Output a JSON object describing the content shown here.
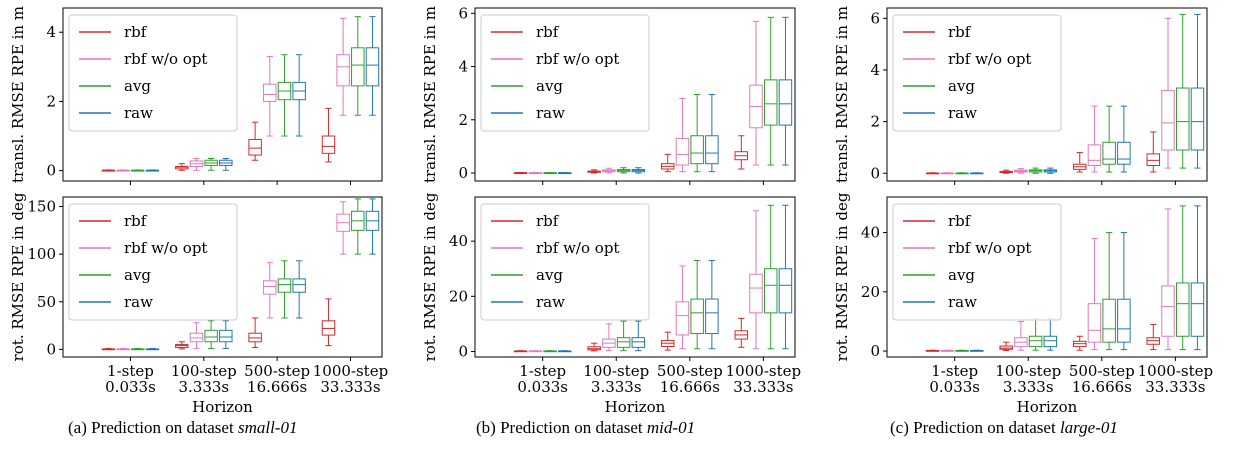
{
  "figure": {
    "xlabel": "Horizon",
    "categories": [
      "1-step\n0.033s",
      "100-step\n3.333s",
      "500-step\n16.666s",
      "1000-step\n33.333s"
    ],
    "legend": [
      {
        "name": "rbf",
        "color": "#d62728"
      },
      {
        "name": "rbf w/o opt",
        "color": "#e377c2"
      },
      {
        "name": "avg",
        "color": "#2ca02c"
      },
      {
        "name": "raw",
        "color": "#1f77b4"
      }
    ],
    "captions": [
      {
        "prefix": "(a) Prediction on dataset ",
        "dataset": "small-01"
      },
      {
        "prefix": "(b) Prediction on dataset ",
        "dataset": "mid-01"
      },
      {
        "prefix": "(c) Prediction on dataset ",
        "dataset": "large-01"
      }
    ]
  },
  "chart_data": [
    {
      "type": "box",
      "panel": "small-01 / translation",
      "ylabel": "transl. RMSE RPE in m",
      "ylim": [
        -0.3,
        4.7
      ],
      "yticks": [
        0,
        2,
        4
      ],
      "categories": [
        "1-step\n0.033s",
        "100-step\n3.333s",
        "500-step\n16.666s",
        "1000-step\n33.333s"
      ],
      "legend_position": "top-left",
      "grid": false,
      "series": [
        {
          "name": "rbf",
          "color": "#d62728",
          "boxes": [
            [
              0.0,
              0.0,
              0.01,
              0.01,
              0.02
            ],
            [
              0.01,
              0.05,
              0.1,
              0.12,
              0.2
            ],
            [
              0.3,
              0.45,
              0.65,
              0.9,
              1.4
            ],
            [
              0.25,
              0.5,
              0.7,
              1.0,
              1.8
            ]
          ]
        },
        {
          "name": "rbf w/o opt",
          "color": "#e377c2",
          "boxes": [
            [
              0.0,
              0.0,
              0.01,
              0.01,
              0.02
            ],
            [
              0.01,
              0.12,
              0.2,
              0.28,
              0.35
            ],
            [
              1.0,
              2.0,
              2.2,
              2.5,
              3.3
            ],
            [
              1.6,
              2.45,
              3.0,
              3.35,
              4.4
            ]
          ]
        },
        {
          "name": "avg",
          "color": "#2ca02c",
          "boxes": [
            [
              0.0,
              0.0,
              0.01,
              0.01,
              0.02
            ],
            [
              0.01,
              0.15,
              0.22,
              0.3,
              0.35
            ],
            [
              1.0,
              2.05,
              2.3,
              2.55,
              3.35
            ],
            [
              1.6,
              2.45,
              3.05,
              3.55,
              4.45
            ]
          ]
        },
        {
          "name": "raw",
          "color": "#1f77b4",
          "boxes": [
            [
              0.0,
              0.0,
              0.01,
              0.01,
              0.02
            ],
            [
              0.01,
              0.15,
              0.22,
              0.3,
              0.35
            ],
            [
              1.0,
              2.05,
              2.3,
              2.55,
              3.35
            ],
            [
              1.6,
              2.45,
              3.05,
              3.55,
              4.45
            ]
          ]
        }
      ]
    },
    {
      "type": "box",
      "panel": "small-01 / rotation",
      "ylabel": "rot. RMSE RPE in deg",
      "ylim": [
        -8,
        160
      ],
      "yticks": [
        0,
        50,
        100,
        150
      ],
      "categories": [
        "1-step\n0.033s",
        "100-step\n3.333s",
        "500-step\n16.666s",
        "1000-step\n33.333s"
      ],
      "legend_position": "top-left",
      "grid": false,
      "series": [
        {
          "name": "rbf",
          "color": "#d62728",
          "boxes": [
            [
              0,
              0,
              0.3,
              0.5,
              1
            ],
            [
              0.5,
              2,
              4,
              5,
              8
            ],
            [
              2,
              8,
              12,
              17,
              33
            ],
            [
              4,
              15,
              22,
              30,
              53
            ]
          ]
        },
        {
          "name": "rbf w/o opt",
          "color": "#e377c2",
          "boxes": [
            [
              0,
              0,
              0.3,
              0.5,
              1
            ],
            [
              1,
              8,
              12,
              17,
              28
            ],
            [
              33,
              58,
              66,
              72,
              91
            ],
            [
              100,
              124,
              133,
              142,
              155
            ]
          ]
        },
        {
          "name": "avg",
          "color": "#2ca02c",
          "boxes": [
            [
              0,
              0,
              0.3,
              0.5,
              1
            ],
            [
              1,
              8,
              13,
              20,
              30
            ],
            [
              33,
              60,
              68,
              74,
              93
            ],
            [
              100,
              125,
              135,
              145,
              158
            ]
          ]
        },
        {
          "name": "raw",
          "color": "#1f77b4",
          "boxes": [
            [
              0,
              0,
              0.3,
              0.5,
              1
            ],
            [
              1,
              8,
              13,
              20,
              30
            ],
            [
              33,
              60,
              68,
              74,
              93
            ],
            [
              100,
              125,
              135,
              145,
              158
            ]
          ]
        }
      ]
    },
    {
      "type": "box",
      "panel": "mid-01 / translation",
      "ylabel": "transl. RMSE RPE in m",
      "ylim": [
        -0.3,
        6.2
      ],
      "yticks": [
        0,
        2,
        4,
        6
      ],
      "categories": [
        "1-step\n0.033s",
        "100-step\n3.333s",
        "500-step\n16.666s",
        "1000-step\n33.333s"
      ],
      "legend_position": "top-left",
      "grid": false,
      "series": [
        {
          "name": "rbf",
          "color": "#d62728",
          "boxes": [
            [
              0,
              0,
              0.01,
              0.01,
              0.02
            ],
            [
              0,
              0.03,
              0.05,
              0.07,
              0.12
            ],
            [
              0.05,
              0.15,
              0.25,
              0.35,
              0.7
            ],
            [
              0.15,
              0.5,
              0.65,
              0.8,
              1.4
            ]
          ]
        },
        {
          "name": "rbf w/o opt",
          "color": "#e377c2",
          "boxes": [
            [
              0,
              0,
              0.01,
              0.01,
              0.02
            ],
            [
              0,
              0.05,
              0.08,
              0.12,
              0.18
            ],
            [
              0.05,
              0.3,
              0.7,
              1.3,
              2.8
            ],
            [
              0.3,
              1.7,
              2.5,
              3.3,
              5.7
            ]
          ]
        },
        {
          "name": "avg",
          "color": "#2ca02c",
          "boxes": [
            [
              0,
              0,
              0.01,
              0.01,
              0.02
            ],
            [
              0,
              0.05,
              0.1,
              0.13,
              0.2
            ],
            [
              0.05,
              0.35,
              0.75,
              1.4,
              2.95
            ],
            [
              0.3,
              1.8,
              2.6,
              3.5,
              5.85
            ]
          ]
        },
        {
          "name": "raw",
          "color": "#1f77b4",
          "boxes": [
            [
              0,
              0,
              0.01,
              0.01,
              0.02
            ],
            [
              0,
              0.05,
              0.1,
              0.13,
              0.2
            ],
            [
              0.05,
              0.35,
              0.75,
              1.4,
              2.95
            ],
            [
              0.3,
              1.8,
              2.6,
              3.5,
              5.85
            ]
          ]
        }
      ]
    },
    {
      "type": "box",
      "panel": "mid-01 / rotation",
      "ylabel": "rot. RMSE RPE in deg",
      "ylim": [
        -2,
        56
      ],
      "yticks": [
        0,
        20,
        40
      ],
      "categories": [
        "1-step\n0.033s",
        "100-step\n3.333s",
        "500-step\n16.666s",
        "1000-step\n33.333s"
      ],
      "legend_position": "top-left",
      "grid": false,
      "series": [
        {
          "name": "rbf",
          "color": "#d62728",
          "boxes": [
            [
              0,
              0,
              0.1,
              0.2,
              0.3
            ],
            [
              0.2,
              0.6,
              1,
              1.7,
              3
            ],
            [
              0.5,
              1.8,
              3,
              4,
              7
            ],
            [
              1.5,
              4.5,
              6,
              7.5,
              12
            ]
          ]
        },
        {
          "name": "rbf w/o opt",
          "color": "#e377c2",
          "boxes": [
            [
              0,
              0,
              0.1,
              0.2,
              0.3
            ],
            [
              0.3,
              1.5,
              3,
              4.5,
              10
            ],
            [
              1,
              6,
              13,
              18,
              31
            ],
            [
              1,
              14,
              23,
              28,
              51
            ]
          ]
        },
        {
          "name": "avg",
          "color": "#2ca02c",
          "boxes": [
            [
              0,
              0,
              0.1,
              0.2,
              0.3
            ],
            [
              0.3,
              1.5,
              3.5,
              5,
              11
            ],
            [
              1,
              6.5,
              14,
              19,
              33
            ],
            [
              1,
              14,
              24,
              30,
              53
            ]
          ]
        },
        {
          "name": "raw",
          "color": "#1f77b4",
          "boxes": [
            [
              0,
              0,
              0.1,
              0.2,
              0.3
            ],
            [
              0.3,
              1.5,
              3.5,
              5,
              11
            ],
            [
              1,
              6.5,
              14,
              19,
              33
            ],
            [
              1,
              14,
              24,
              30,
              53
            ]
          ]
        }
      ]
    },
    {
      "type": "box",
      "panel": "large-01 / translation",
      "ylabel": "transl. RMSE RPE in m",
      "ylim": [
        -0.3,
        6.4
      ],
      "yticks": [
        0,
        2,
        4,
        6
      ],
      "categories": [
        "1-step\n0.033s",
        "100-step\n3.333s",
        "500-step\n16.666s",
        "1000-step\n33.333s"
      ],
      "legend_position": "top-left",
      "grid": false,
      "series": [
        {
          "name": "rbf",
          "color": "#d62728",
          "boxes": [
            [
              0,
              0,
              0.01,
              0.01,
              0.02
            ],
            [
              0,
              0.03,
              0.05,
              0.07,
              0.12
            ],
            [
              0.05,
              0.15,
              0.25,
              0.35,
              0.8
            ],
            [
              0.05,
              0.3,
              0.5,
              0.75,
              1.6
            ]
          ]
        },
        {
          "name": "rbf w/o opt",
          "color": "#e377c2",
          "boxes": [
            [
              0,
              0,
              0.01,
              0.01,
              0.02
            ],
            [
              0,
              0.05,
              0.08,
              0.12,
              0.18
            ],
            [
              0.05,
              0.3,
              0.5,
              1.1,
              2.6
            ],
            [
              0.2,
              0.9,
              1.95,
              3.2,
              6.0
            ]
          ]
        },
        {
          "name": "avg",
          "color": "#2ca02c",
          "boxes": [
            [
              0,
              0,
              0.01,
              0.01,
              0.02
            ],
            [
              0,
              0.05,
              0.1,
              0.13,
              0.2
            ],
            [
              0.05,
              0.35,
              0.55,
              1.2,
              2.6
            ],
            [
              0.2,
              0.9,
              2.0,
              3.3,
              6.15
            ]
          ]
        },
        {
          "name": "raw",
          "color": "#1f77b4",
          "boxes": [
            [
              0,
              0,
              0.01,
              0.01,
              0.02
            ],
            [
              0,
              0.05,
              0.1,
              0.13,
              0.2
            ],
            [
              0.05,
              0.35,
              0.55,
              1.2,
              2.6
            ],
            [
              0.2,
              0.9,
              2.0,
              3.3,
              6.15
            ]
          ]
        }
      ]
    },
    {
      "type": "box",
      "panel": "large-01 / rotation",
      "ylabel": "rot. RMSE RPE in deg",
      "ylim": [
        -2,
        52
      ],
      "yticks": [
        0,
        20,
        40
      ],
      "categories": [
        "1-step\n0.033s",
        "100-step\n3.333s",
        "500-step\n16.666s",
        "1000-step\n33.333s"
      ],
      "legend_position": "top-left",
      "grid": false,
      "series": [
        {
          "name": "rbf",
          "color": "#d62728",
          "boxes": [
            [
              0,
              0,
              0.1,
              0.2,
              0.3
            ],
            [
              0.2,
              0.6,
              1,
              1.7,
              3
            ],
            [
              0.3,
              1.5,
              2.5,
              3.3,
              5
            ],
            [
              0.5,
              2.3,
              3.5,
              4.5,
              9
            ]
          ]
        },
        {
          "name": "rbf w/o opt",
          "color": "#e377c2",
          "boxes": [
            [
              0,
              0,
              0.1,
              0.2,
              0.3
            ],
            [
              0.3,
              1.5,
              3,
              4.5,
              10
            ],
            [
              0.5,
              3,
              7,
              16,
              38
            ],
            [
              0.5,
              5,
              15,
              22,
              48
            ]
          ]
        },
        {
          "name": "avg",
          "color": "#2ca02c",
          "boxes": [
            [
              0,
              0,
              0.1,
              0.2,
              0.3
            ],
            [
              0.3,
              1.5,
              3.5,
              5,
              11
            ],
            [
              0.5,
              3,
              7.5,
              17.5,
              40
            ],
            [
              0.5,
              5,
              16,
              23,
              49
            ]
          ]
        },
        {
          "name": "raw",
          "color": "#1f77b4",
          "boxes": [
            [
              0,
              0,
              0.1,
              0.2,
              0.3
            ],
            [
              0.3,
              1.5,
              3.5,
              5,
              11
            ],
            [
              0.5,
              3,
              7.5,
              17.5,
              40
            ],
            [
              0.5,
              5,
              16,
              23,
              49
            ]
          ]
        }
      ]
    }
  ]
}
